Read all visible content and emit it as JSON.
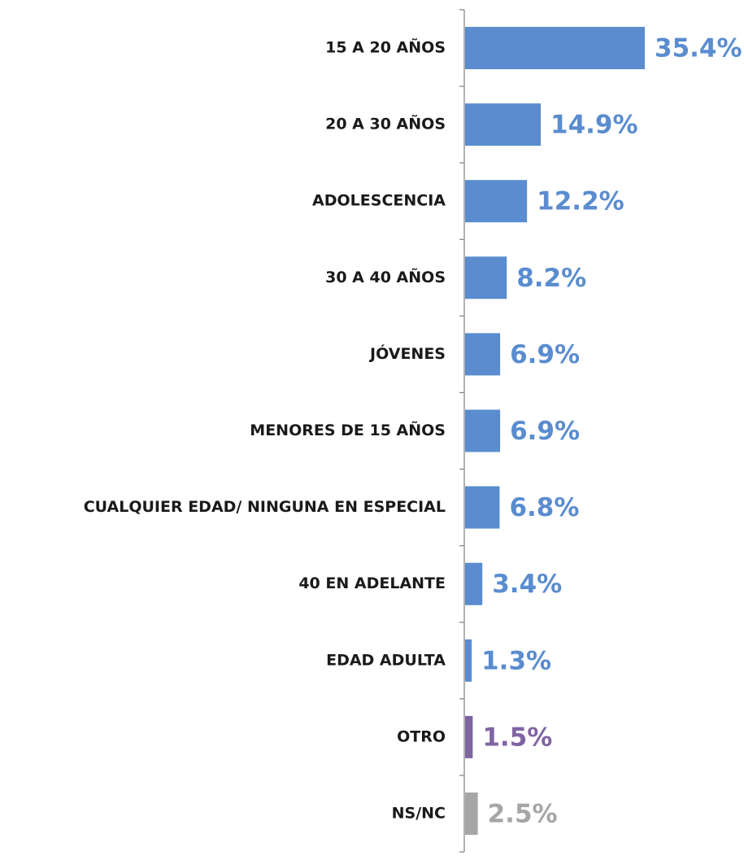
{
  "chart_data": {
    "type": "barh",
    "categories": [
      "15 A 20 AÑOS",
      "20 A 30 AÑOS",
      "ADOLESCENCIA",
      "30 A 40 AÑOS",
      "JÓVENES",
      "MENORES DE 15 AÑOS",
      "CUALQUIER EDAD/ NINGUNA EN ESPECIAL",
      "40 EN ADELANTE",
      "EDAD ADULTA",
      "OTRO",
      "NS/NC"
    ],
    "values": [
      35.4,
      14.9,
      12.2,
      8.2,
      6.9,
      6.9,
      6.8,
      3.4,
      1.3,
      1.5,
      2.5
    ],
    "value_labels": [
      "35.4%",
      "14.9%",
      "12.2%",
      "8.2%",
      "6.9%",
      "6.9%",
      "6.8%",
      "3.4%",
      "1.3%",
      "1.5%",
      "2.5%"
    ],
    "colors": [
      "#5a8ccf",
      "#5a8ccf",
      "#5a8ccf",
      "#5a8ccf",
      "#5a8ccf",
      "#5a8ccf",
      "#5a8ccf",
      "#5a8ccf",
      "#5a8ccf",
      "#8064a2",
      "#a6a6a6"
    ]
  }
}
